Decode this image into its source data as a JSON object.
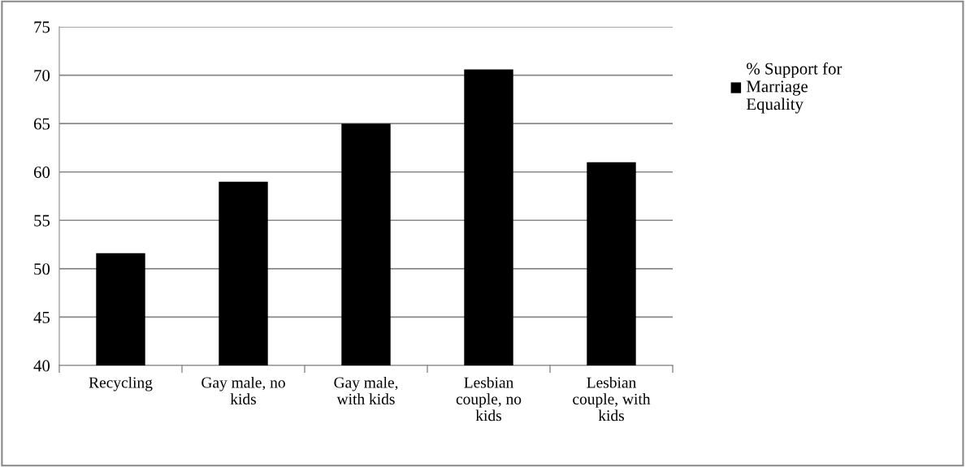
{
  "chart_data": {
    "type": "bar",
    "categories": [
      "Recycling",
      "Gay male, no\nkids",
      "Gay male,\nwith kids",
      "Lesbian\ncouple, no\nkids",
      "Lesbian\ncouple, with\nkids"
    ],
    "series": [
      {
        "name": "% Support for\nMarriage\nEquality",
        "color": "#000000",
        "values": [
          51.6,
          59.0,
          65.0,
          70.6,
          61.0
        ]
      }
    ],
    "ylim": [
      40,
      75
    ],
    "yticks": [
      40,
      45,
      50,
      55,
      60,
      65,
      70,
      75
    ],
    "grid": "y",
    "legend": "right"
  }
}
